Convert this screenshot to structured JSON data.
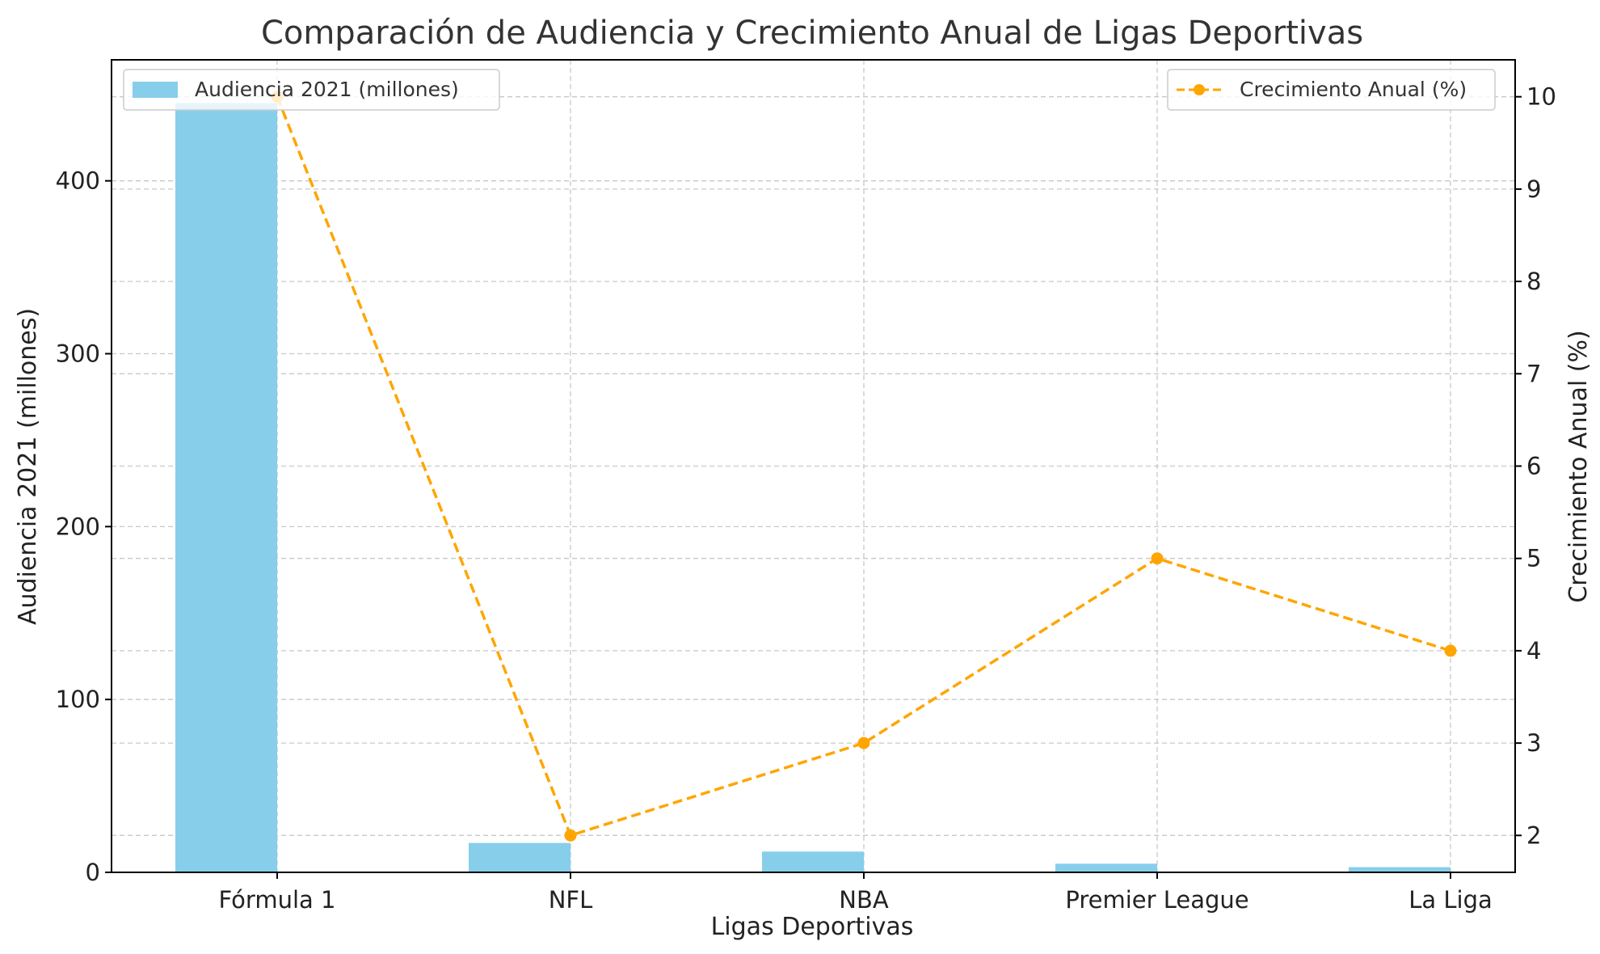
{
  "chart_data": {
    "type": "bar+line",
    "title": "Comparación de Audiencia y Crecimiento Anual de Ligas Deportivas",
    "xlabel": "Ligas Deportivas",
    "ylabel": "Audiencia 2021 (millones)",
    "ylabel_right": "Crecimiento Anual (%)",
    "categories": [
      "Fórmula 1",
      "NFL",
      "NBA",
      "Premier League",
      "La Liga"
    ],
    "grid": true,
    "series": [
      {
        "name": "Audiencia 2021 (millones)",
        "type": "bar",
        "axis": "left",
        "color": "#87CEEB",
        "values": [
          445,
          17,
          12,
          5,
          3
        ]
      },
      {
        "name": "Crecimiento Anual (%)",
        "type": "line",
        "axis": "right",
        "color": "#FFA500",
        "line_style": "dashed",
        "marker": "circle",
        "values": [
          10,
          2,
          3,
          5,
          4
        ]
      }
    ],
    "y_left": {
      "ylim": [
        0,
        470
      ],
      "ticks": [
        0,
        100,
        200,
        300,
        400
      ]
    },
    "y_right": {
      "ylim": [
        1.6,
        10.4
      ],
      "ticks": [
        2,
        3,
        4,
        5,
        6,
        7,
        8,
        9,
        10
      ]
    },
    "legend_left": {
      "placement": "top-left",
      "label": "Audiencia 2021 (millones)"
    },
    "legend_right": {
      "placement": "top-right",
      "label": "Crecimiento Anual (%)"
    }
  }
}
